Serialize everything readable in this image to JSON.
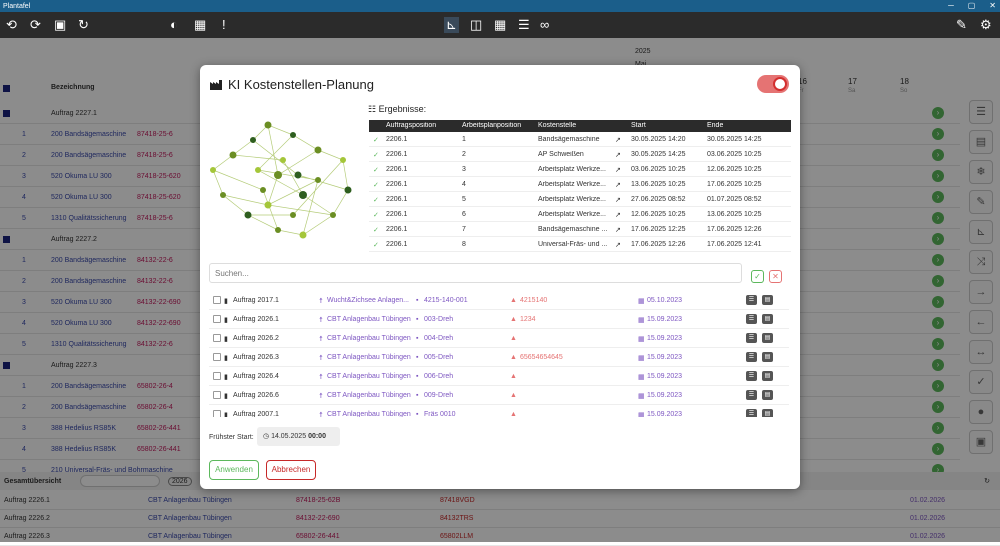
{
  "app": {
    "title": "Plantafel"
  },
  "toolbar": {
    "undo": "⟲",
    "redo": "⟳",
    "save": "▣",
    "refresh": "↻",
    "warn": "!"
  },
  "timeline": {
    "year": "2025",
    "month": "Mai",
    "days": [
      "16",
      "17",
      "18"
    ],
    "weekdays": [
      "Fr",
      "Sa",
      "So"
    ]
  },
  "grid": {
    "header": "Bezeichnung",
    "rows": [
      {
        "type": "grp",
        "label": "Auftrag 2227.1",
        "top": 103
      },
      {
        "type": "item",
        "pos": "1",
        "name": "200 Bandsägemaschine",
        "code": "87418-25-6",
        "top": 124
      },
      {
        "type": "item",
        "pos": "2",
        "name": "200 Bandsägemaschine",
        "code": "87418-25-6",
        "top": 145
      },
      {
        "type": "item",
        "pos": "3",
        "name": "520 Okuma LU 300",
        "code": "87418-25-620",
        "top": 166
      },
      {
        "type": "item",
        "pos": "4",
        "name": "520 Okuma LU 300",
        "code": "87418-25-620",
        "top": 187
      },
      {
        "type": "item",
        "pos": "5",
        "name": "1310 Qualitätssicherung",
        "code": "87418-25-6",
        "top": 208
      },
      {
        "type": "grp",
        "label": "Auftrag 2227.2",
        "top": 229
      },
      {
        "type": "item",
        "pos": "1",
        "name": "200 Bandsägemaschine",
        "code": "84132-22-6",
        "top": 250
      },
      {
        "type": "item",
        "pos": "2",
        "name": "200 Bandsägemaschine",
        "code": "84132-22-6",
        "top": 271
      },
      {
        "type": "item",
        "pos": "3",
        "name": "520 Okuma LU 300",
        "code": "84132-22-690",
        "top": 292
      },
      {
        "type": "item",
        "pos": "4",
        "name": "520 Okuma LU 300",
        "code": "84132-22-690",
        "top": 313
      },
      {
        "type": "item",
        "pos": "5",
        "name": "1310 Qualitätssicherung",
        "code": "84132-22-6",
        "top": 334
      },
      {
        "type": "grp",
        "label": "Auftrag 2227.3",
        "top": 355
      },
      {
        "type": "item",
        "pos": "1",
        "name": "200 Bandsägemaschine",
        "code": "65802-26-4",
        "top": 376
      },
      {
        "type": "item",
        "pos": "2",
        "name": "200 Bandsägemaschine",
        "code": "65802-26-4",
        "top": 397
      },
      {
        "type": "item",
        "pos": "3",
        "name": "388 Hedelius RS85K",
        "code": "65802-26-441",
        "top": 418
      },
      {
        "type": "item",
        "pos": "4",
        "name": "388 Hedelius RS85K",
        "code": "65802-26-441",
        "top": 439
      },
      {
        "type": "item",
        "pos": "5",
        "name": "210 Universal-Fräs- und Bohrmaschine",
        "code": "",
        "top": 460
      }
    ]
  },
  "bottom": {
    "title": "Gesamtübersicht",
    "year": "2026",
    "rows": [
      {
        "order": "Auftrag 2226.1",
        "customer": "CBT Anlagenbau Tübingen",
        "code": "87418-25-62B",
        "ref": "87418VGD",
        "date": "01.02.2026"
      },
      {
        "order": "Auftrag 2226.2",
        "customer": "CBT Anlagenbau Tübingen",
        "code": "84132-22-690",
        "ref": "84132TRS",
        "date": "01.02.2026"
      },
      {
        "order": "Auftrag 2226.3",
        "customer": "CBT Anlagenbau Tübingen",
        "code": "65802-26-441",
        "ref": "65802LLM",
        "date": "01.02.2026"
      }
    ]
  },
  "modal": {
    "title": "KI Kostenstellen-Planung",
    "results_label": "Ergebnisse:",
    "columns": [
      "Auftragsposition",
      "Arbeitsplanposition",
      "Kostenstelle",
      "Start",
      "Ende"
    ],
    "results": [
      {
        "ap": "2206.1",
        "pos": "1",
        "ks": "Bandsägemaschine",
        "start": "30.05.2025 14:20",
        "end": "30.05.2025 14:25"
      },
      {
        "ap": "2206.1",
        "pos": "2",
        "ks": "AP Schweißen",
        "start": "30.05.2025 14:25",
        "end": "03.06.2025 10:25"
      },
      {
        "ap": "2206.1",
        "pos": "3",
        "ks": "Arbeitsplatz Werkze...",
        "start": "03.06.2025 10:25",
        "end": "12.06.2025 10:25"
      },
      {
        "ap": "2206.1",
        "pos": "4",
        "ks": "Arbeitsplatz Werkze...",
        "start": "13.06.2025 10:25",
        "end": "17.06.2025 10:25"
      },
      {
        "ap": "2206.1",
        "pos": "5",
        "ks": "Arbeitsplatz Werkze...",
        "start": "27.06.2025 08:52",
        "end": "01.07.2025 08:52"
      },
      {
        "ap": "2206.1",
        "pos": "6",
        "ks": "Arbeitsplatz Werkze...",
        "start": "12.06.2025 10:25",
        "end": "13.06.2025 10:25"
      },
      {
        "ap": "2206.1",
        "pos": "7",
        "ks": "Bandsägemaschine ...",
        "start": "17.06.2025 12:25",
        "end": "17.06.2025 12:26"
      },
      {
        "ap": "2206.1",
        "pos": "8",
        "ks": "Universal-Fräs- und ...",
        "start": "17.06.2025 12:26",
        "end": "17.06.2025 12:41"
      }
    ],
    "search_placeholder": "Suchen...",
    "orders": [
      {
        "name": "Auftrag 2017.1",
        "customer": "Wucht&Zichsee Anlagen...",
        "code": "4215-140-001",
        "ref": "4215140",
        "date": "05.10.2023"
      },
      {
        "name": "Auftrag 2026.1",
        "customer": "CBT Anlagenbau Tübingen",
        "code": "003-Dreh",
        "ref": "1234",
        "date": "15.09.2023"
      },
      {
        "name": "Auftrag 2026.2",
        "customer": "CBT Anlagenbau Tübingen",
        "code": "004-Dreh",
        "ref": "",
        "date": "15.09.2023"
      },
      {
        "name": "Auftrag 2026.3",
        "customer": "CBT Anlagenbau Tübingen",
        "code": "005-Dreh",
        "ref": "65654654645",
        "date": "15.09.2023"
      },
      {
        "name": "Auftrag 2026.4",
        "customer": "CBT Anlagenbau Tübingen",
        "code": "006-Dreh",
        "ref": "",
        "date": "15.09.2023"
      },
      {
        "name": "Auftrag 2026.6",
        "customer": "CBT Anlagenbau Tübingen",
        "code": "009-Dreh",
        "ref": "",
        "date": "15.09.2023"
      },
      {
        "name": "Auftrag 2007.1",
        "customer": "CBT Anlagenbau Tübingen",
        "code": "Fräs 0010",
        "ref": "",
        "date": "15.09.2023"
      }
    ],
    "start_label": "Frühster Start:",
    "start_date": "14.05.2025",
    "start_time": "00:00",
    "apply": "Anwenden",
    "cancel": "Abbrechen"
  }
}
